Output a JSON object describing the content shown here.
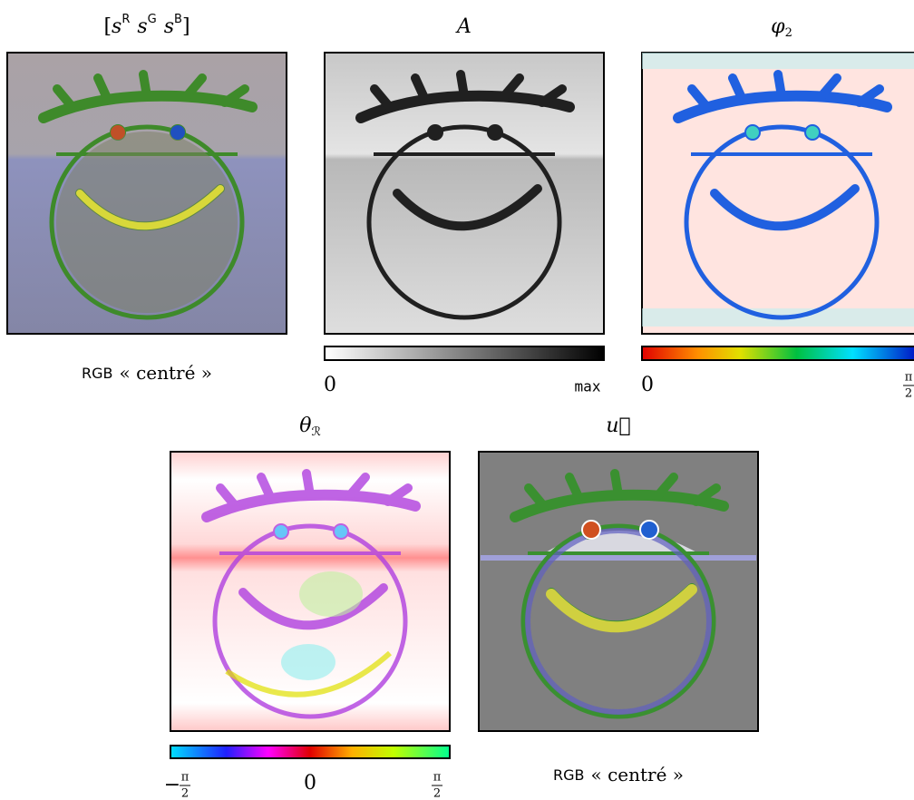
{
  "panels": [
    {
      "title": {
        "open": "[",
        "bases": [
          "s",
          "s",
          "s"
        ],
        "sups": [
          "R",
          "G",
          "B"
        ],
        "close": "]"
      },
      "caption": {
        "word": "RGB",
        "rest": "« centré »"
      }
    },
    {
      "title": {
        "base": "A"
      },
      "colorbar": {
        "min": "0",
        "max": "max"
      }
    },
    {
      "title": {
        "base": "φ",
        "sub": "2"
      },
      "colorbar": {
        "min": "0",
        "max": {
          "num": "π",
          "den": "2"
        }
      }
    },
    {
      "title": {
        "base": "θ",
        "sub": "ℛ"
      },
      "colorbar": {
        "min": {
          "sign": "−",
          "num": "π",
          "den": "2"
        },
        "mid": "0",
        "max": {
          "num": "π",
          "den": "2"
        }
      }
    },
    {
      "title": {
        "base": "u⃗"
      },
      "caption": {
        "word": "RGB",
        "rest": "« centré »"
      }
    }
  ]
}
